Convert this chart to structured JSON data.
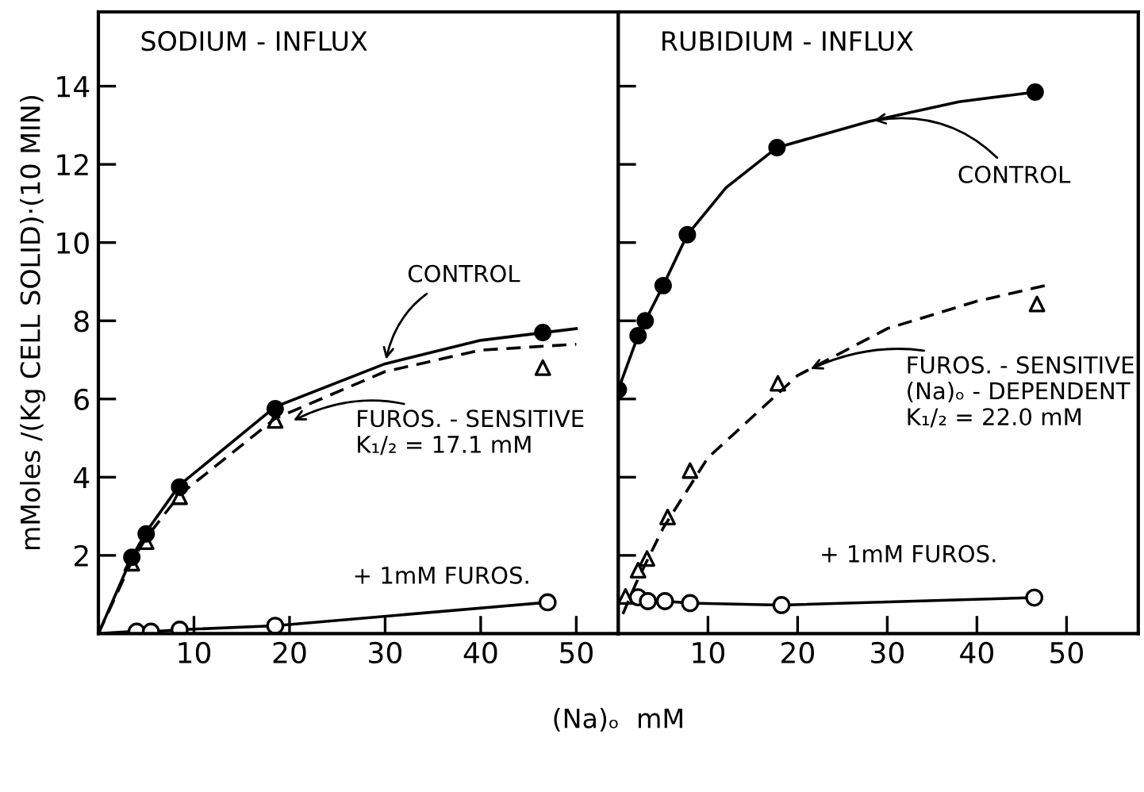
{
  "chart_data": [
    {
      "type": "line",
      "title": "SODIUM - INFLUX",
      "ylabel": "mMoles /(Kg CELL SOLID)·(10 MIN)",
      "xlim": [
        0,
        54.4
      ],
      "ylim": [
        0,
        15.9
      ],
      "xticks": [
        10,
        20,
        30,
        40,
        50
      ],
      "yticks": [
        2,
        4,
        6,
        8,
        10,
        12,
        14
      ],
      "grid": false,
      "legend": false,
      "series": [
        {
          "type": "scatter",
          "marker": "circle",
          "color": "#000000",
          "x": [
            3.5,
            5,
            8.5,
            18.5,
            46.5
          ],
          "values": [
            1.95,
            2.55,
            3.75,
            5.75,
            7.7
          ]
        },
        {
          "line_style": "solid",
          "marker": "none",
          "color": "#000000",
          "x": [
            0,
            3.5,
            5,
            8.5,
            18.5,
            30,
            40,
            50
          ],
          "values": [
            0,
            1.95,
            2.6,
            3.8,
            5.8,
            6.9,
            7.5,
            7.8
          ]
        },
        {
          "type": "scatter",
          "marker": "triangle",
          "color": "#000000",
          "x": [
            3.5,
            5,
            8.5,
            18.5,
            46.5
          ],
          "values": [
            1.8,
            2.35,
            3.5,
            5.45,
            6.8
          ]
        },
        {
          "line_style": "dashed",
          "marker": "none",
          "color": "#000000",
          "x": [
            0,
            3.5,
            5,
            8.5,
            18.5,
            30,
            40,
            50
          ],
          "values": [
            0,
            1.85,
            2.45,
            3.55,
            5.5,
            6.7,
            7.25,
            7.4
          ]
        },
        {
          "line_style": "solid",
          "marker": "none",
          "color": "#000000",
          "x": [
            0,
            3.3
          ],
          "values": [
            0,
            0.05
          ]
        },
        {
          "line_style": "solid",
          "marker": "circle",
          "color": "#000000",
          "x": [
            4,
            5.5,
            8.5,
            18.5,
            47
          ],
          "values": [
            0.05,
            0.05,
            0.1,
            0.2,
            0.8
          ]
        }
      ],
      "annotations": [
        {
          "text": "CONTROL",
          "x": 30,
          "y": 6.9
        },
        {
          "text": "FUROS. - SENSITIVE\nK₁/₂ = 17.1 mM",
          "x": 20,
          "y": 5.4
        },
        {
          "text": "+ 1mM FUROS.",
          "x": 22,
          "y": 0.2
        }
      ]
    },
    {
      "type": "line",
      "title": "RUBIDIUM - INFLUX",
      "xlabel": "(Na)ₒ  mM",
      "xlim": [
        0,
        58
      ],
      "ylim": [
        0,
        15.9
      ],
      "xticks": [
        10,
        20,
        30,
        40,
        50
      ],
      "yticks": [
        2,
        4,
        6,
        8,
        10,
        12,
        14
      ],
      "tick_labels": "x",
      "grid": false,
      "legend": false,
      "series": [
        {
          "type": "scatter",
          "marker": "circle",
          "color": "#000000",
          "x": [
            0,
            2.2,
            3,
            5,
            7.7,
            17.7,
            46.5
          ],
          "values": [
            6.24,
            7.62,
            8.0,
            8.9,
            10.2,
            12.43,
            13.85
          ]
        },
        {
          "line_style": "solid",
          "marker": "none",
          "color": "#000000",
          "x": [
            0,
            2.2,
            3,
            5,
            7.7,
            12,
            17.7,
            28,
            38,
            46.5
          ],
          "values": [
            6.24,
            7.62,
            8.0,
            8.9,
            10.2,
            11.4,
            12.43,
            13.1,
            13.6,
            13.85
          ]
        },
        {
          "type": "scatter",
          "marker": "triangle",
          "color": "#000000",
          "x": [
            0.8,
            2.2,
            3.2,
            5.5,
            8,
            17.8,
            46.7
          ],
          "values": [
            0.95,
            1.62,
            1.92,
            2.98,
            4.17,
            6.4,
            8.43
          ]
        },
        {
          "line_style": "dashed",
          "marker": "none",
          "color": "#000000",
          "x": [
            0.5,
            2,
            5,
            10,
            20,
            30,
            40,
            47.6
          ],
          "values": [
            0.5,
            1.3,
            2.7,
            4.5,
            6.6,
            7.8,
            8.5,
            8.9
          ]
        },
        {
          "line_style": "solid",
          "marker": "circle",
          "color": "#000000",
          "x": [
            2.2,
            3.3,
            5.2,
            8,
            18.2,
            46.4
          ],
          "values": [
            0.93,
            0.83,
            0.83,
            0.78,
            0.73,
            0.92
          ]
        }
      ],
      "annotations": [
        {
          "text": "CONTROL",
          "x": 28,
          "y": 13.1
        },
        {
          "text": "FUROS. - SENSITIVE\n(Na)ₒ - DEPENDENT\nK₁/₂ = 22.0 mM",
          "x": 21,
          "y": 6.72
        },
        {
          "text": "+ 1mM FUROS.",
          "x": 20,
          "y": 0.75
        }
      ]
    }
  ]
}
